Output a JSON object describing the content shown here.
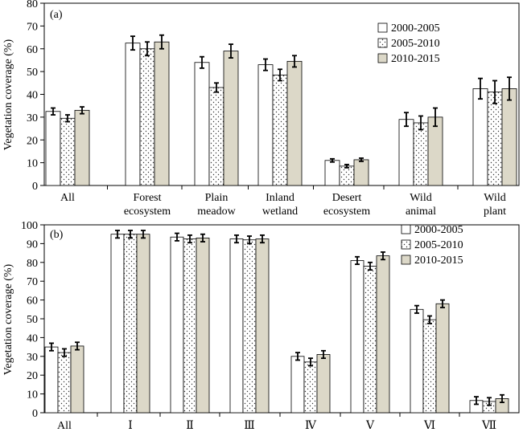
{
  "colors": {
    "series_fill": [
      "#ffffff",
      "#ffffff",
      "#dcd8c8"
    ],
    "series_pattern": [
      "none",
      "dots",
      "none"
    ],
    "bar_stroke": "#000000",
    "dot_color": "#333333"
  },
  "chart_data": [
    {
      "type": "bar",
      "panel_label": "(a)",
      "title": "",
      "xlabel": "",
      "ylabel": "Vegetation coverage (%)",
      "ylim": [
        0,
        80
      ],
      "yticks": [
        0,
        10,
        20,
        30,
        40,
        50,
        60,
        70,
        80
      ],
      "grid": false,
      "legend_position": "top-right",
      "categories": [
        [
          "All"
        ],
        [
          "Forest",
          "ecosystem"
        ],
        [
          "Plain",
          "meadow"
        ],
        [
          "Inland",
          "wetland"
        ],
        [
          "Desert",
          "ecosystem"
        ],
        [
          "Wild",
          "animal"
        ],
        [
          "Wild",
          "plant"
        ]
      ],
      "series": [
        {
          "name": "2000-2005",
          "values": [
            32.5,
            62.5,
            54,
            53,
            11,
            29,
            42.5
          ],
          "errors": [
            1.5,
            3,
            2.5,
            2.5,
            0.7,
            3,
            4.5
          ]
        },
        {
          "name": "2005-2010",
          "values": [
            29.5,
            60,
            43,
            48.5,
            8.5,
            27.5,
            41
          ],
          "errors": [
            1.5,
            3,
            2,
            2.5,
            0.7,
            3,
            5
          ]
        },
        {
          "name": "2010-2015",
          "values": [
            33,
            63,
            59,
            54.5,
            11.3,
            30,
            42.5
          ],
          "errors": [
            1.5,
            3,
            3,
            2.5,
            0.7,
            4,
            5
          ]
        }
      ]
    },
    {
      "type": "bar",
      "panel_label": "(b)",
      "title": "",
      "xlabel": "",
      "ylabel": "Vegetation coverage (%)",
      "ylim": [
        0,
        100
      ],
      "yticks": [
        0,
        10,
        20,
        30,
        40,
        50,
        60,
        70,
        80,
        90,
        100
      ],
      "grid": false,
      "legend_position": "top-right",
      "categories": [
        [
          "All"
        ],
        [
          "Ⅰ"
        ],
        [
          "Ⅱ"
        ],
        [
          "Ⅲ"
        ],
        [
          "Ⅳ"
        ],
        [
          "Ⅴ"
        ],
        [
          "Ⅵ"
        ],
        [
          "Ⅶ"
        ]
      ],
      "series": [
        {
          "name": "2000-2005",
          "values": [
            35,
            95,
            93.5,
            92.5,
            30,
            81,
            55,
            6.5
          ],
          "errors": [
            2,
            2,
            2,
            2,
            2,
            2,
            2,
            2
          ]
        },
        {
          "name": "2005-2010",
          "values": [
            32,
            95,
            92.5,
            92,
            27,
            78,
            49.5,
            6
          ],
          "errors": [
            2,
            2,
            2,
            2,
            2,
            2,
            2,
            2
          ]
        },
        {
          "name": "2010-2015",
          "values": [
            35.5,
            95,
            93,
            92.5,
            31,
            83.5,
            58,
            7.5
          ],
          "errors": [
            2,
            2,
            2,
            2,
            2,
            2,
            2,
            2
          ]
        }
      ]
    }
  ]
}
